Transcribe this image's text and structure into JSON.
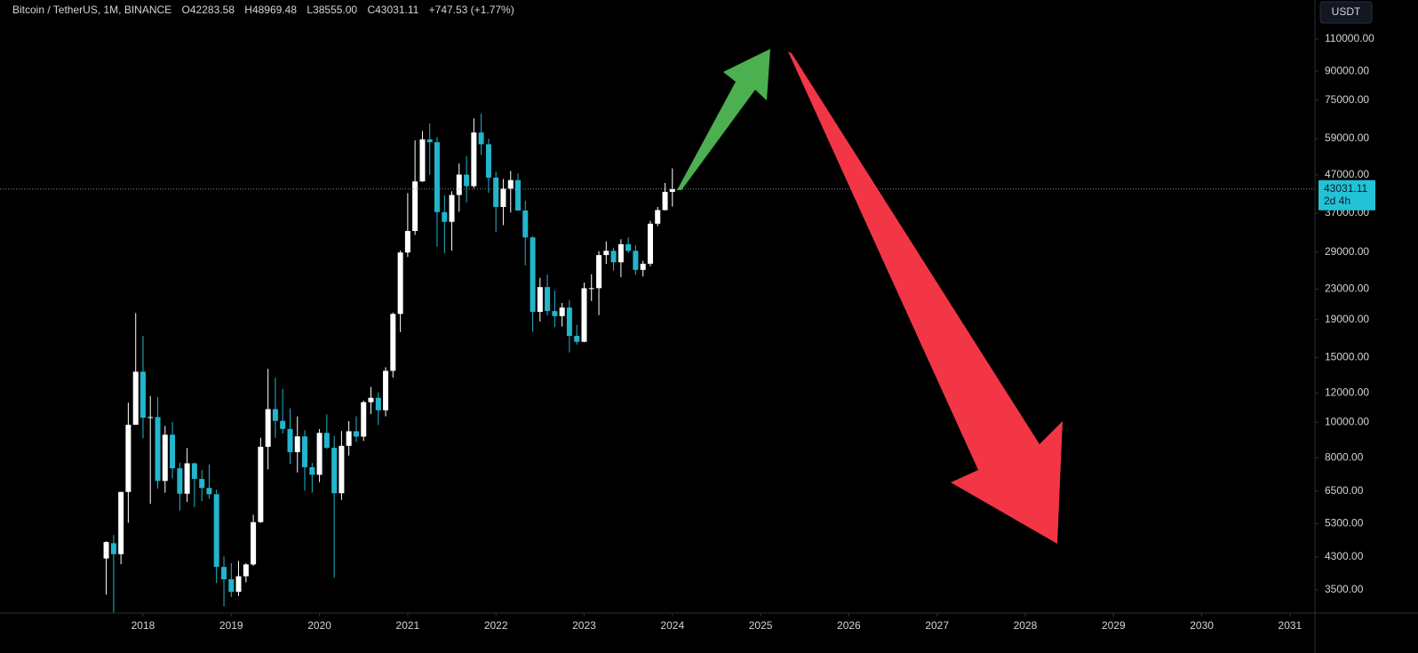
{
  "chart_data": {
    "type": "candlestick",
    "header": {
      "symbol": "Bitcoin / TetherUS, 1M, BINANCE",
      "ohlc_labels": [
        "O",
        "H",
        "L",
        "C"
      ],
      "change": "+747.53 (+1.77%)"
    },
    "currency_button": "USDT",
    "countdown": "2d 4h",
    "x": [
      2017.583,
      2017.667,
      2017.75,
      2017.833,
      2017.917,
      2018,
      2018.083,
      2018.167,
      2018.25,
      2018.333,
      2018.417,
      2018.5,
      2018.583,
      2018.667,
      2018.75,
      2018.833,
      2018.917,
      2019,
      2019.083,
      2019.167,
      2019.25,
      2019.333,
      2019.417,
      2019.5,
      2019.583,
      2019.667,
      2019.75,
      2019.833,
      2019.917,
      2020,
      2020.083,
      2020.167,
      2020.25,
      2020.333,
      2020.417,
      2020.5,
      2020.583,
      2020.667,
      2020.75,
      2020.833,
      2020.917,
      2021,
      2021.083,
      2021.167,
      2021.25,
      2021.333,
      2021.417,
      2021.5,
      2021.583,
      2021.667,
      2021.75,
      2021.833,
      2021.917,
      2022,
      2022.083,
      2022.167,
      2022.25,
      2022.333,
      2022.417,
      2022.5,
      2022.583,
      2022.667,
      2022.75,
      2022.833,
      2022.917,
      2023,
      2023.083,
      2023.167,
      2023.25,
      2023.333,
      2023.417,
      2023.5,
      2023.583,
      2023.667,
      2023.75,
      2023.833,
      2023.917,
      2024
    ],
    "open": [
      4261,
      4689,
      4378,
      6463,
      9838,
      13716,
      10285,
      10326,
      6923,
      9246,
      7494,
      6391,
      7730,
      7011,
      6626,
      6371,
      4041,
      3742,
      3458,
      3813,
      4105,
      5350,
      8574,
      10854,
      10084,
      9588,
      8289,
      9150,
      7546,
      7195,
      9352,
      8523,
      6410,
      8624,
      9448,
      9138,
      11335,
      11650,
      10776,
      13791,
      19695,
      28923,
      33092,
      45135,
      58740,
      57694,
      37253,
      35045,
      41462,
      47100,
      43824,
      61300,
      56950,
      46216,
      38466,
      43160,
      45510,
      37630,
      31801,
      19942,
      23293,
      20050,
      19423,
      20491,
      17164,
      16542,
      23125,
      23141,
      28465,
      29233,
      27210,
      30472,
      29232,
      25941,
      26962,
      34639,
      37723,
      42283.58
    ],
    "high": [
      4745,
      4939,
      6470,
      11300,
      19798,
      17176,
      11786,
      11710,
      9765,
      10020,
      7760,
      8507,
      7770,
      7410,
      7680,
      6555,
      4313,
      4140,
      4198,
      4140,
      5600,
      9074,
      13970,
      13203,
      12325,
      10905,
      10370,
      9510,
      7750,
      9578,
      10500,
      9188,
      9460,
      10067,
      10380,
      11444,
      12468,
      12050,
      14100,
      19863,
      29300,
      41950,
      58352,
      61844,
      64854,
      59592,
      41330,
      42448,
      50500,
      52920,
      67000,
      69000,
      59053,
      47990,
      45821,
      48190,
      47444,
      40023,
      31982,
      24668,
      25211,
      22799,
      21085,
      21480,
      18387,
      23960,
      25250,
      29184,
      31000,
      29820,
      31431,
      31804,
      30244,
      27483,
      35280,
      38450,
      44700,
      48969.48
    ],
    "low": [
      3400,
      2817,
      4110,
      5325,
      10400,
      9035,
      6000,
      6600,
      6430,
      7032,
      5750,
      6070,
      5880,
      6100,
      6200,
      3652,
      3157,
      3349,
      3373,
      3670,
      4067,
      5330,
      7440,
      9071,
      9320,
      7710,
      7300,
      6515,
      6435,
      6871,
      8445,
      3782,
      6150,
      8117,
      8833,
      8893,
      10518,
      9825,
      10374,
      13219,
      17572,
      28130,
      32296,
      45000,
      47044,
      30000,
      28805,
      29278,
      37332,
      39600,
      43283,
      53256,
      42000,
      32917,
      34322,
      37155,
      37578,
      26700,
      17622,
      18781,
      19520,
      18125,
      18190,
      15476,
      16256,
      16499,
      21351,
      19549,
      26942,
      25811,
      24800,
      28861,
      25166,
      24901,
      26538,
      34097,
      37615,
      38555.0
    ],
    "close": [
      4724,
      4378,
      6463,
      9838,
      13716,
      10285,
      10326,
      6923,
      9246,
      7494,
      6391,
      7730,
      7011,
      6626,
      6371,
      4041,
      3742,
      3458,
      3813,
      4105,
      5350,
      8574,
      10854,
      10084,
      9588,
      8289,
      9150,
      7546,
      7195,
      9352,
      8523,
      6410,
      8624,
      9448,
      9138,
      11335,
      11650,
      10776,
      13791,
      19695,
      28923,
      33092,
      45135,
      58740,
      57694,
      37253,
      35045,
      41462,
      47100,
      43824,
      61300,
      56950,
      46216,
      38466,
      43160,
      45510,
      37630,
      31801,
      19942,
      23293,
      20050,
      19423,
      20491,
      17164,
      16542,
      23125,
      23141,
      28465,
      29233,
      27210,
      30472,
      29232,
      25941,
      26962,
      34639,
      37723,
      42283,
      43031.11
    ],
    "up_color": "#ffffff",
    "down_color": "#22b5cc",
    "price_tag_color": "#22c3d6",
    "xlim": [
      2016.379,
      2031.283
    ],
    "xticks": [
      2018,
      2019,
      2020,
      2021,
      2022,
      2023,
      2024,
      2025,
      2026,
      2027,
      2028,
      2029,
      2030,
      2031
    ],
    "ylim": [
      3029,
      140500
    ],
    "log_y": true,
    "grid": false,
    "yticks": [
      {
        "value": 110000,
        "label": "110000.00"
      },
      {
        "value": 90000,
        "label": "90000.00"
      },
      {
        "value": 75000,
        "label": "75000.00"
      },
      {
        "value": 59000,
        "label": "59000.00"
      },
      {
        "value": 47000,
        "label": "47000.00"
      },
      {
        "value": 37000,
        "label": "37000.00"
      },
      {
        "value": 29000,
        "label": "29000.00"
      },
      {
        "value": 23000,
        "label": "23000.00"
      },
      {
        "value": 19000,
        "label": "19000.00"
      },
      {
        "value": 15000,
        "label": "15000.00"
      },
      {
        "value": 12000,
        "label": "12000.00"
      },
      {
        "value": 10000,
        "label": "10000.00"
      },
      {
        "value": 8000,
        "label": "8000.00"
      },
      {
        "value": 6500,
        "label": "6500.00"
      },
      {
        "value": 5300,
        "label": "5300.00"
      },
      {
        "value": 4300,
        "label": "4300.00"
      },
      {
        "value": 3500,
        "label": "3500.00"
      }
    ]
  }
}
